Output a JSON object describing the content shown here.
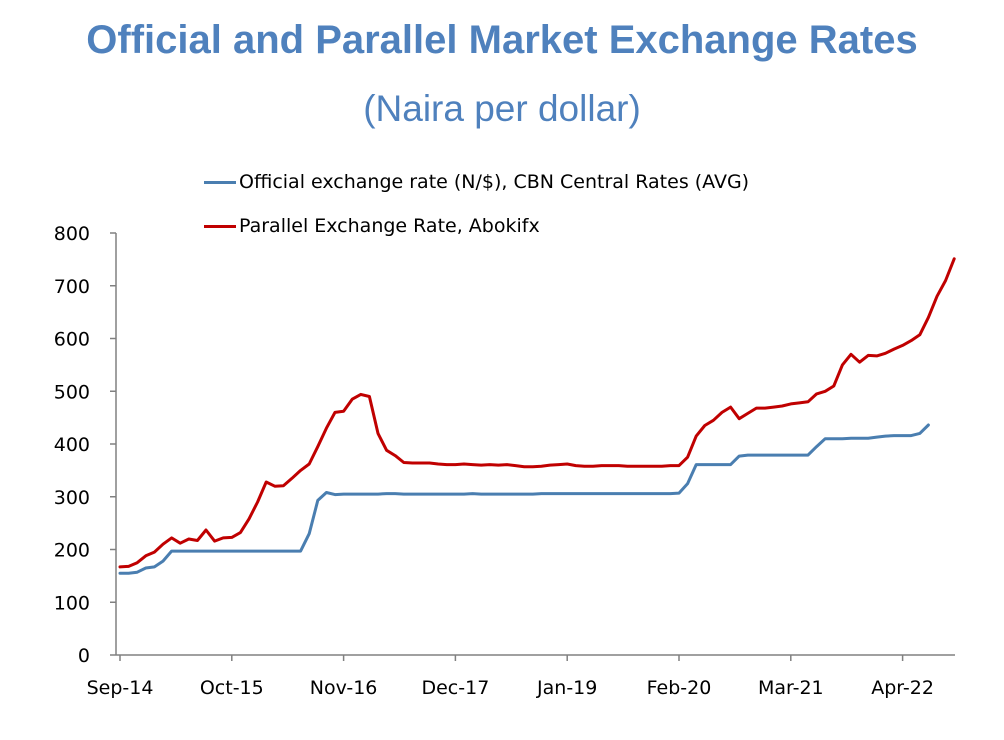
{
  "header": {
    "title": "Official and Parallel Market Exchange Rates",
    "subtitle": "(Naira per dollar)"
  },
  "colors": {
    "title": "#4f81bd",
    "official": "#4a7eb0",
    "parallel": "#c00000",
    "axis": "#808080"
  },
  "chart_data": {
    "type": "line",
    "title": "Official and Parallel Market Exchange Rates",
    "subtitle": "(Naira per dollar)",
    "xlabel": "",
    "ylabel": "",
    "ylim": [
      0,
      800
    ],
    "yticks": [
      0,
      100,
      200,
      300,
      400,
      500,
      600,
      700,
      800
    ],
    "x_start": "Sep-14",
    "x_unit": "months since Sep-14",
    "xlim": [
      0,
      94
    ],
    "xticks": [
      {
        "label": "Sep-14",
        "x": 0
      },
      {
        "label": "Oct-15",
        "x": 13
      },
      {
        "label": "Nov-16",
        "x": 26
      },
      {
        "label": "Dec-17",
        "x": 39
      },
      {
        "label": "Jan-19",
        "x": 52
      },
      {
        "label": "Feb-20",
        "x": 65
      },
      {
        "label": "Mar-21",
        "x": 78
      },
      {
        "label": "Apr-22",
        "x": 91
      }
    ],
    "legend_position": "top-center",
    "grid": false,
    "series": [
      {
        "name": "Official exchange rate (N/$), CBN Central Rates (AVG)",
        "color": "#4a7eb0",
        "points": [
          [
            0,
            155
          ],
          [
            1,
            155
          ],
          [
            2,
            157
          ],
          [
            3,
            165
          ],
          [
            4,
            167
          ],
          [
            5,
            178
          ],
          [
            6,
            197
          ],
          [
            7,
            197
          ],
          [
            8,
            197
          ],
          [
            9,
            197
          ],
          [
            10,
            197
          ],
          [
            11,
            197
          ],
          [
            12,
            197
          ],
          [
            13,
            197
          ],
          [
            14,
            197
          ],
          [
            15,
            197
          ],
          [
            16,
            197
          ],
          [
            17,
            197
          ],
          [
            18,
            197
          ],
          [
            19,
            197
          ],
          [
            20,
            197
          ],
          [
            21,
            197
          ],
          [
            22,
            230
          ],
          [
            23,
            293
          ],
          [
            24,
            308
          ],
          [
            25,
            304
          ],
          [
            26,
            305
          ],
          [
            27,
            305
          ],
          [
            28,
            305
          ],
          [
            29,
            305
          ],
          [
            30,
            305
          ],
          [
            31,
            306
          ],
          [
            32,
            306
          ],
          [
            33,
            305
          ],
          [
            34,
            305
          ],
          [
            35,
            305
          ],
          [
            36,
            305
          ],
          [
            37,
            305
          ],
          [
            38,
            305
          ],
          [
            39,
            305
          ],
          [
            40,
            305
          ],
          [
            41,
            306
          ],
          [
            42,
            305
          ],
          [
            43,
            305
          ],
          [
            44,
            305
          ],
          [
            45,
            305
          ],
          [
            46,
            305
          ],
          [
            47,
            305
          ],
          [
            48,
            305
          ],
          [
            49,
            306
          ],
          [
            50,
            306
          ],
          [
            51,
            306
          ],
          [
            52,
            306
          ],
          [
            53,
            306
          ],
          [
            54,
            306
          ],
          [
            55,
            306
          ],
          [
            56,
            306
          ],
          [
            57,
            306
          ],
          [
            58,
            306
          ],
          [
            59,
            306
          ],
          [
            60,
            306
          ],
          [
            61,
            306
          ],
          [
            62,
            306
          ],
          [
            63,
            306
          ],
          [
            64,
            306
          ],
          [
            65,
            307
          ],
          [
            66,
            325
          ],
          [
            67,
            361
          ],
          [
            68,
            361
          ],
          [
            69,
            361
          ],
          [
            70,
            361
          ],
          [
            71,
            361
          ],
          [
            72,
            377
          ],
          [
            73,
            379
          ],
          [
            74,
            379
          ],
          [
            75,
            379
          ],
          [
            76,
            379
          ],
          [
            77,
            379
          ],
          [
            78,
            379
          ],
          [
            79,
            379
          ],
          [
            80,
            379
          ],
          [
            81,
            395
          ],
          [
            82,
            410
          ],
          [
            83,
            410
          ],
          [
            84,
            410
          ],
          [
            85,
            411
          ],
          [
            86,
            411
          ],
          [
            87,
            411
          ],
          [
            88,
            413
          ],
          [
            89,
            415
          ],
          [
            90,
            416
          ],
          [
            91,
            416
          ],
          [
            92,
            416
          ],
          [
            93,
            420
          ],
          [
            94,
            436
          ]
        ]
      },
      {
        "name": "Parallel Exchange Rate, Abokifx",
        "color": "#c00000",
        "points": [
          [
            0,
            167
          ],
          [
            1,
            168
          ],
          [
            2,
            175
          ],
          [
            3,
            188
          ],
          [
            4,
            195
          ],
          [
            5,
            210
          ],
          [
            6,
            222
          ],
          [
            7,
            212
          ],
          [
            8,
            220
          ],
          [
            9,
            217
          ],
          [
            10,
            237
          ],
          [
            11,
            216
          ],
          [
            12,
            222
          ],
          [
            13,
            223
          ],
          [
            14,
            232
          ],
          [
            15,
            258
          ],
          [
            16,
            290
          ],
          [
            17,
            328
          ],
          [
            18,
            320
          ],
          [
            19,
            321
          ],
          [
            20,
            335
          ],
          [
            21,
            350
          ],
          [
            22,
            362
          ],
          [
            23,
            395
          ],
          [
            24,
            430
          ],
          [
            25,
            460
          ],
          [
            26,
            462
          ],
          [
            27,
            485
          ],
          [
            28,
            494
          ],
          [
            29,
            490
          ],
          [
            30,
            420
          ],
          [
            31,
            388
          ],
          [
            32,
            378
          ],
          [
            33,
            365
          ],
          [
            34,
            364
          ],
          [
            35,
            364
          ],
          [
            36,
            364
          ],
          [
            37,
            362
          ],
          [
            38,
            361
          ],
          [
            39,
            361
          ],
          [
            40,
            362
          ],
          [
            41,
            361
          ],
          [
            42,
            360
          ],
          [
            43,
            361
          ],
          [
            44,
            360
          ],
          [
            45,
            361
          ],
          [
            46,
            359
          ],
          [
            47,
            357
          ],
          [
            48,
            357
          ],
          [
            49,
            358
          ],
          [
            50,
            360
          ],
          [
            51,
            361
          ],
          [
            52,
            362
          ],
          [
            53,
            359
          ],
          [
            54,
            358
          ],
          [
            55,
            358
          ],
          [
            56,
            359
          ],
          [
            57,
            359
          ],
          [
            58,
            359
          ],
          [
            59,
            358
          ],
          [
            60,
            358
          ],
          [
            61,
            358
          ],
          [
            62,
            358
          ],
          [
            63,
            358
          ],
          [
            64,
            359
          ],
          [
            65,
            359
          ],
          [
            66,
            375
          ],
          [
            67,
            415
          ],
          [
            68,
            435
          ],
          [
            69,
            445
          ],
          [
            70,
            460
          ],
          [
            71,
            470
          ],
          [
            72,
            448
          ],
          [
            73,
            458
          ],
          [
            74,
            468
          ],
          [
            75,
            468
          ],
          [
            76,
            470
          ],
          [
            77,
            472
          ],
          [
            78,
            476
          ],
          [
            79,
            478
          ],
          [
            80,
            480
          ],
          [
            81,
            495
          ],
          [
            82,
            500
          ],
          [
            83,
            510
          ],
          [
            84,
            550
          ],
          [
            85,
            570
          ],
          [
            86,
            555
          ],
          [
            87,
            568
          ],
          [
            88,
            567
          ],
          [
            89,
            572
          ],
          [
            90,
            580
          ],
          [
            91,
            587
          ],
          [
            92,
            596
          ],
          [
            93,
            607
          ],
          [
            94,
            640
          ],
          [
            95,
            680
          ],
          [
            96,
            710
          ],
          [
            97,
            751
          ]
        ]
      }
    ],
    "legend": [
      "Official exchange rate (N/$), CBN Central Rates (AVG)",
      "Parallel Exchange Rate, Abokifx"
    ]
  }
}
